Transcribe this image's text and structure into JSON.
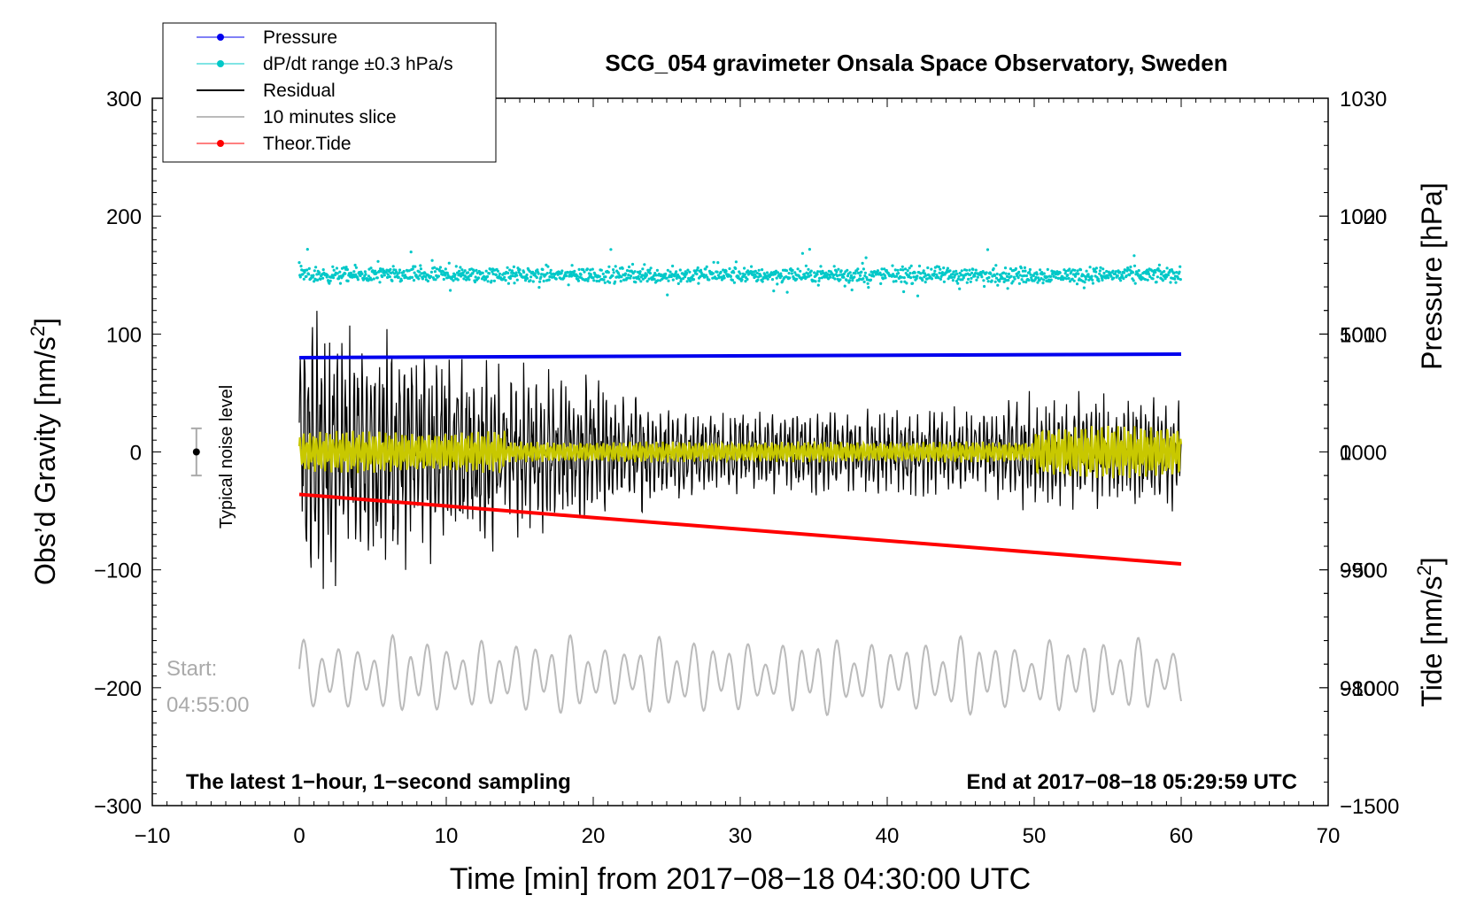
{
  "chart_data": {
    "type": "line",
    "title": "SCG_054 gravimeter Onsala Space Observatory, Sweden",
    "xlabel": "Time [min] from 2017−08−18 04:30:00 UTC",
    "xlim": [
      -10,
      70
    ],
    "xticks": [
      "−10",
      "0",
      "10",
      "20",
      "30",
      "40",
      "50",
      "60",
      "70"
    ],
    "ylabel_left": "Obs’d Gravity [nm/s",
    "ylabel_left_sup": "2",
    "ylabel_left_close": "]",
    "ylim_left": [
      -300,
      300
    ],
    "yticks_left": [
      "300",
      "200",
      "100",
      "0",
      "−100",
      "−200",
      "−300"
    ],
    "ylabel_pressure": "Pressure [hPa]",
    "ylim_pressure": [
      970,
      1030
    ],
    "yticks_pressure": [
      "1030",
      "1020",
      "1010",
      "1000",
      "990",
      "980"
    ],
    "ylabel_tide": "Tide [nm/s",
    "ylabel_tide_sup": "2",
    "ylabel_tide_close": "]",
    "ylim_tide": [
      -1500,
      1500
    ],
    "yticks_tide": [
      "1000",
      "500",
      "0",
      "−500",
      "−1000",
      "−1500"
    ],
    "legend": [
      {
        "label": "Pressure",
        "color": "#0000ee",
        "marker": true
      },
      {
        "label": "dP/dt range ±0.3 hPa/s",
        "color": "#00c8c8",
        "marker": true
      },
      {
        "label": "Residual",
        "color": "#000000",
        "marker": false
      },
      {
        "label": "10 minutes slice",
        "color": "#bbbbbb",
        "marker": false
      },
      {
        "label": "Theor.Tide",
        "color": "#ff0000",
        "marker": true
      }
    ],
    "series": [
      {
        "name": "Pressure",
        "axis": "pressure",
        "color": "#0000ee",
        "x": [
          0,
          60
        ],
        "values": [
          1008.0,
          1008.3
        ]
      },
      {
        "name": "dP/dt range ±0.3 hPa/s",
        "axis": "left",
        "color": "#00c8c8",
        "center_value": 150,
        "spread": 7
      },
      {
        "name": "Residual",
        "axis": "left",
        "color": "#000000",
        "x_range": [
          0,
          60
        ],
        "amplitude_start": 110,
        "amplitude_end": 35
      },
      {
        "name": "Residual (filtered)",
        "axis": "left",
        "color": "#c8c800",
        "x_range": [
          0,
          60
        ],
        "amplitude": 15
      },
      {
        "name": "10 minutes slice",
        "axis": "left",
        "color": "#bbbbbb",
        "x_range": [
          0,
          60
        ],
        "center_value": -190,
        "amplitude": 25
      },
      {
        "name": "Theor.Tide",
        "axis": "tide",
        "color": "#ff0000",
        "x": [
          0,
          60
        ],
        "values": [
          -180,
          -475
        ]
      }
    ],
    "noise_level": {
      "label": "Typical noise level",
      "x": -7,
      "value": 0,
      "error": 20
    },
    "annotations": {
      "start_label": "Start:",
      "start_time": "04:55:00",
      "bottom_left": "The latest 1−hour, 1−second sampling",
      "bottom_right": "End at 2017−08−18 05:29:59 UTC"
    },
    "colors": {
      "pressure": "#0000ee",
      "dpdt": "#00c8c8",
      "residual": "#000000",
      "filtered": "#c8c800",
      "slice": "#bbbbbb",
      "tide": "#ff0000",
      "annotation_gray": "#aaaaaa"
    }
  }
}
